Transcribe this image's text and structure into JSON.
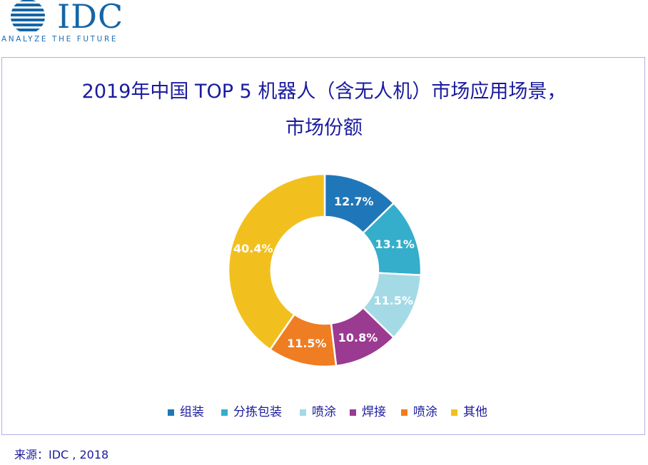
{
  "logo": {
    "text": "IDC",
    "tagline": "ANALYZE THE FUTURE",
    "color": "#1565a6"
  },
  "chart_data": {
    "type": "pie",
    "title_line1": "2019年中国 TOP 5 机器人（含无人机）市场应用场景，",
    "title_line2": "市场份额",
    "donut": true,
    "slices": [
      {
        "name": "组装",
        "value": 12.7,
        "label": "12.7%",
        "color": "#1f77b9"
      },
      {
        "name": "分拣包装",
        "value": 13.1,
        "label": "13.1%",
        "color": "#35aecb"
      },
      {
        "name": "喷涂",
        "value": 11.5,
        "label": "11.5%",
        "color": "#a4dae5"
      },
      {
        "name": "焊接",
        "value": 10.8,
        "label": "10.8%",
        "color": "#9a3a91"
      },
      {
        "name": "喷涂",
        "value": 11.5,
        "label": "11.5%",
        "color": "#ef7d22"
      },
      {
        "name": "其他",
        "value": 40.4,
        "label": "40.4%",
        "color": "#f2c01e"
      }
    ],
    "legend_position": "bottom"
  },
  "source": "来源：IDC , 2018"
}
